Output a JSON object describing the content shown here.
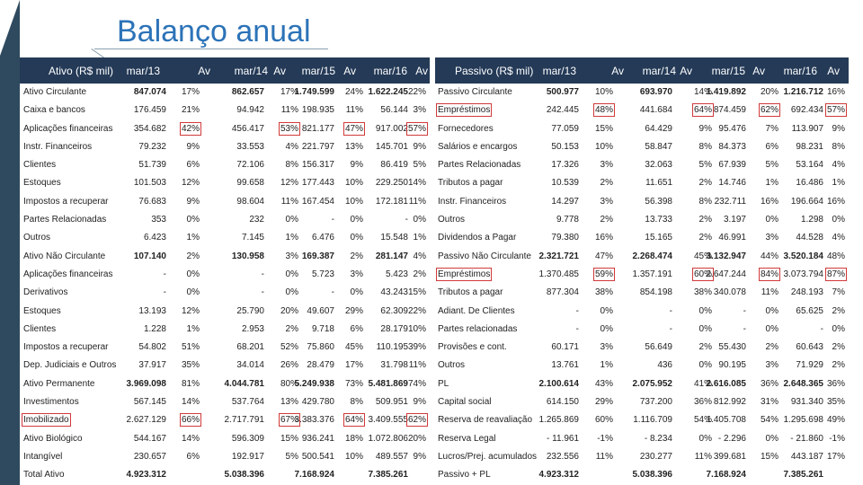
{
  "title": "Balanço anual",
  "ativo": {
    "header": [
      "Ativo (R$ mil)",
      "mar/13",
      "Av",
      "mar/14",
      "Av",
      "mar/15",
      "Av",
      "mar/16",
      "Av"
    ],
    "rows": [
      {
        "label": "Ativo Circulante",
        "bold": true,
        "v": [
          "847.074",
          "17%",
          "862.657",
          "17%",
          "1.749.599",
          "24%",
          "1.622.245",
          "22%"
        ]
      },
      {
        "label": "Caixa e bancos",
        "v": [
          "176.459",
          "21%",
          "94.942",
          "11%",
          "198.935",
          "11%",
          "56.144",
          "3%"
        ]
      },
      {
        "label": "Aplicações financeiras",
        "v": [
          "354.682",
          "42%",
          "456.417",
          "53%",
          "821.177",
          "47%",
          "917.002",
          "57%"
        ],
        "hl": [
          1,
          3,
          5,
          7
        ]
      },
      {
        "label": "Instr. Financeiros",
        "v": [
          "79.232",
          "9%",
          "33.553",
          "4%",
          "221.797",
          "13%",
          "145.701",
          "9%"
        ]
      },
      {
        "label": "Clientes",
        "v": [
          "51.739",
          "6%",
          "72.106",
          "8%",
          "156.317",
          "9%",
          "86.419",
          "5%"
        ]
      },
      {
        "label": "Estoques",
        "v": [
          "101.503",
          "12%",
          "99.658",
          "12%",
          "177.443",
          "10%",
          "229.250",
          "14%"
        ]
      },
      {
        "label": "Impostos a recuperar",
        "v": [
          "76.683",
          "9%",
          "98.604",
          "11%",
          "167.454",
          "10%",
          "172.181",
          "11%"
        ]
      },
      {
        "label": "Partes Relacionadas",
        "v": [
          "353",
          "0%",
          "232",
          "0%",
          "-",
          "0%",
          "-",
          "0%"
        ]
      },
      {
        "label": "Outros",
        "v": [
          "6.423",
          "1%",
          "7.145",
          "1%",
          "6.476",
          "0%",
          "15.548",
          "1%"
        ]
      },
      {
        "label": "Ativo Não Circulante",
        "bold": true,
        "v": [
          "107.140",
          "2%",
          "130.958",
          "3%",
          "169.387",
          "2%",
          "281.147",
          "4%"
        ]
      },
      {
        "label": "Aplicações financeiras",
        "v": [
          "-",
          "0%",
          "-",
          "0%",
          "5.723",
          "3%",
          "5.423",
          "2%"
        ]
      },
      {
        "label": "Derivativos",
        "v": [
          "-",
          "0%",
          "-",
          "0%",
          "-",
          "0%",
          "43.243",
          "15%"
        ]
      },
      {
        "label": "Estoques",
        "v": [
          "13.193",
          "12%",
          "25.790",
          "20%",
          "49.607",
          "29%",
          "62.309",
          "22%"
        ]
      },
      {
        "label": "Clientes",
        "v": [
          "1.228",
          "1%",
          "2.953",
          "2%",
          "9.718",
          "6%",
          "28.179",
          "10%"
        ]
      },
      {
        "label": "Impostos a recuperar",
        "v": [
          "54.802",
          "51%",
          "68.201",
          "52%",
          "75.860",
          "45%",
          "110.195",
          "39%"
        ]
      },
      {
        "label": "Dep. Judiciais e Outros",
        "v": [
          "37.917",
          "35%",
          "34.014",
          "26%",
          "28.479",
          "17%",
          "31.798",
          "11%"
        ]
      },
      {
        "label": "Ativo Permanente",
        "bold": true,
        "v": [
          "3.969.098",
          "81%",
          "4.044.781",
          "80%",
          "5.249.938",
          "73%",
          "5.481.869",
          "74%"
        ]
      },
      {
        "label": "Investimentos",
        "v": [
          "567.145",
          "14%",
          "537.764",
          "13%",
          "429.780",
          "8%",
          "509.951",
          "9%"
        ]
      },
      {
        "label": "Imobilizado",
        "v": [
          "2.627.129",
          "66%",
          "2.717.791",
          "67%",
          "3.383.376",
          "64%",
          "3.409.555",
          "62%"
        ],
        "hl": [
          1,
          3,
          5,
          7
        ],
        "hlLabel": true
      },
      {
        "label": "Ativo Biológico",
        "v": [
          "544.167",
          "14%",
          "596.309",
          "15%",
          "936.241",
          "18%",
          "1.072.806",
          "20%"
        ]
      },
      {
        "label": "Intangível",
        "v": [
          "230.657",
          "6%",
          "192.917",
          "5%",
          "500.541",
          "10%",
          "489.557",
          "9%"
        ]
      },
      {
        "label": "Total Ativo",
        "bold": true,
        "v": [
          "4.923.312",
          "",
          "5.038.396",
          "",
          "7.168.924",
          "",
          "7.385.261",
          ""
        ]
      }
    ]
  },
  "passivo": {
    "header": [
      "Passivo (R$ mil)",
      "mar/13",
      "Av",
      "mar/14",
      "Av",
      "mar/15",
      "Av",
      "mar/16",
      "Av"
    ],
    "rows": [
      {
        "label": "Passivo Circulante",
        "bold": true,
        "v": [
          "500.977",
          "10%",
          "693.970",
          "14%",
          "1.419.892",
          "20%",
          "1.216.712",
          "16%"
        ]
      },
      {
        "label": "Empréstimos",
        "v": [
          "242.445",
          "48%",
          "441.684",
          "64%",
          "874.459",
          "62%",
          "692.434",
          "57%"
        ],
        "hl": [
          1,
          3,
          5,
          7
        ],
        "hlLabel": true
      },
      {
        "label": "Fornecedores",
        "v": [
          "77.059",
          "15%",
          "64.429",
          "9%",
          "95.476",
          "7%",
          "113.907",
          "9%"
        ]
      },
      {
        "label": "Salários e encargos",
        "v": [
          "50.153",
          "10%",
          "58.847",
          "8%",
          "84.373",
          "6%",
          "98.231",
          "8%"
        ]
      },
      {
        "label": "Partes Relacionadas",
        "v": [
          "17.326",
          "3%",
          "32.063",
          "5%",
          "67.939",
          "5%",
          "53.164",
          "4%"
        ]
      },
      {
        "label": "Tributos a pagar",
        "v": [
          "10.539",
          "2%",
          "11.651",
          "2%",
          "14.746",
          "1%",
          "16.486",
          "1%"
        ]
      },
      {
        "label": "Instr. Financeiros",
        "v": [
          "14.297",
          "3%",
          "56.398",
          "8%",
          "232.711",
          "16%",
          "196.664",
          "16%"
        ]
      },
      {
        "label": "Outros",
        "v": [
          "9.778",
          "2%",
          "13.733",
          "2%",
          "3.197",
          "0%",
          "1.298",
          "0%"
        ]
      },
      {
        "label": "Dividendos a Pagar",
        "v": [
          "79.380",
          "16%",
          "15.165",
          "2%",
          "46.991",
          "3%",
          "44.528",
          "4%"
        ]
      },
      {
        "label": "Passivo Não Circulante",
        "bold": true,
        "v": [
          "2.321.721",
          "47%",
          "2.268.474",
          "45%",
          "3.132.947",
          "44%",
          "3.520.184",
          "48%"
        ]
      },
      {
        "label": "Empréstimos",
        "v": [
          "1.370.485",
          "59%",
          "1.357.191",
          "60%",
          "2.647.244",
          "84%",
          "3.073.794",
          "87%"
        ],
        "hl": [
          1,
          3,
          5,
          7
        ],
        "hlLabel": true
      },
      {
        "label": "Tributos a pagar",
        "v": [
          "877.304",
          "38%",
          "854.198",
          "38%",
          "340.078",
          "11%",
          "248.193",
          "7%"
        ]
      },
      {
        "label": "Adiant. De Clientes",
        "v": [
          "-",
          "0%",
          "-",
          "0%",
          "-",
          "0%",
          "65.625",
          "2%"
        ]
      },
      {
        "label": "Partes relacionadas",
        "v": [
          "-",
          "0%",
          "-",
          "0%",
          "-",
          "0%",
          "-",
          "0%"
        ]
      },
      {
        "label": "Provisões e cont.",
        "v": [
          "60.171",
          "3%",
          "56.649",
          "2%",
          "55.430",
          "2%",
          "60.643",
          "2%"
        ]
      },
      {
        "label": "Outros",
        "v": [
          "13.761",
          "1%",
          "436",
          "0%",
          "90.195",
          "3%",
          "71.929",
          "2%"
        ]
      },
      {
        "label": "PL",
        "bold": true,
        "v": [
          "2.100.614",
          "43%",
          "2.075.952",
          "41%",
          "2.616.085",
          "36%",
          "2.648.365",
          "36%"
        ]
      },
      {
        "label": "Capital social",
        "v": [
          "614.150",
          "29%",
          "737.200",
          "36%",
          "812.992",
          "31%",
          "931.340",
          "35%"
        ]
      },
      {
        "label": "Reserva de reavaliação",
        "v": [
          "1.265.869",
          "60%",
          "1.116.709",
          "54%",
          "1.405.708",
          "54%",
          "1.295.698",
          "49%"
        ]
      },
      {
        "label": "Reserva Legal",
        "v": [
          "- 11.961",
          "-1%",
          "- 8.234",
          "0%",
          "- 2.296",
          "0%",
          "- 21.860",
          "-1%"
        ]
      },
      {
        "label": "Lucros/Prej. acumulados",
        "v": [
          "232.556",
          "11%",
          "230.277",
          "11%",
          "399.681",
          "15%",
          "443.187",
          "17%"
        ]
      },
      {
        "label": "Passivo + PL",
        "bold": true,
        "v": [
          "4.923.312",
          "",
          "5.038.396",
          "",
          "7.168.924",
          "",
          "7.385.261",
          ""
        ]
      }
    ]
  }
}
